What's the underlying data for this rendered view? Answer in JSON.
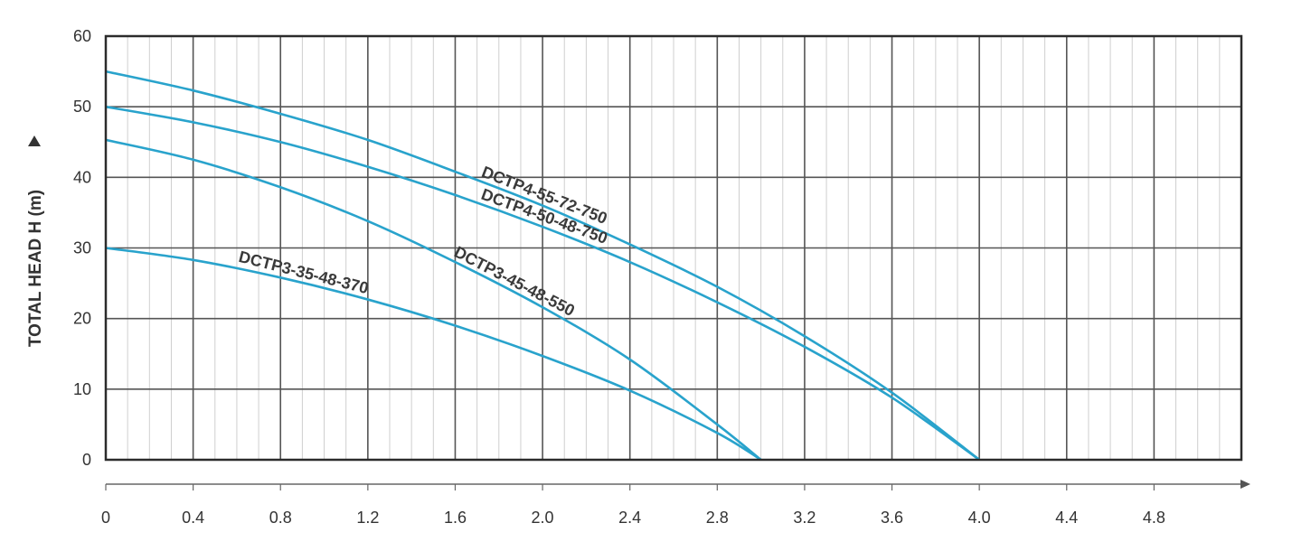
{
  "chart_data": {
    "type": "line",
    "ylabel": "TOTAL HEAD H (m)",
    "xlim": [
      0,
      5.2
    ],
    "ylim": [
      0,
      60
    ],
    "grid": true,
    "x_ticks": [
      "0",
      "0.4",
      "0.8",
      "1.2",
      "1.6",
      "2.0",
      "2.4",
      "2.8",
      "3.2",
      "3.6",
      "4.0",
      "4.4",
      "4.8"
    ],
    "y_ticks": [
      "0",
      "10",
      "20",
      "30",
      "40",
      "50",
      "60"
    ],
    "line_color": "#29a3cc",
    "series": [
      {
        "name": "DCTP4-55-72-750",
        "x": [
          0,
          0.4,
          0.8,
          1.2,
          1.6,
          2.0,
          2.4,
          2.8,
          3.2,
          3.6,
          4.0
        ],
        "y": [
          55,
          52.3,
          49,
          45.3,
          40.8,
          36,
          30.5,
          24.5,
          17.5,
          9.5,
          0
        ]
      },
      {
        "name": "DCTP4-50-48-750",
        "x": [
          0,
          0.4,
          0.8,
          1.2,
          1.6,
          2.0,
          2.4,
          2.8,
          3.2,
          3.6,
          4.0
        ],
        "y": [
          50,
          47.8,
          45,
          41.5,
          37.5,
          33,
          28,
          22.3,
          16,
          8.8,
          0
        ]
      },
      {
        "name": "DCTP3-45-48-550",
        "x": [
          0,
          0.4,
          0.8,
          1.2,
          1.6,
          2.0,
          2.4,
          2.8,
          3.0
        ],
        "y": [
          45.3,
          42.5,
          38.6,
          33.8,
          28,
          21.6,
          14.2,
          5,
          0
        ]
      },
      {
        "name": "DCTP3-35-48-370",
        "x": [
          0,
          0.4,
          0.8,
          1.2,
          1.6,
          2.0,
          2.4,
          2.8,
          3.0
        ],
        "y": [
          30,
          28.3,
          25.8,
          22.7,
          19,
          14.7,
          9.8,
          3.8,
          0
        ]
      }
    ]
  }
}
